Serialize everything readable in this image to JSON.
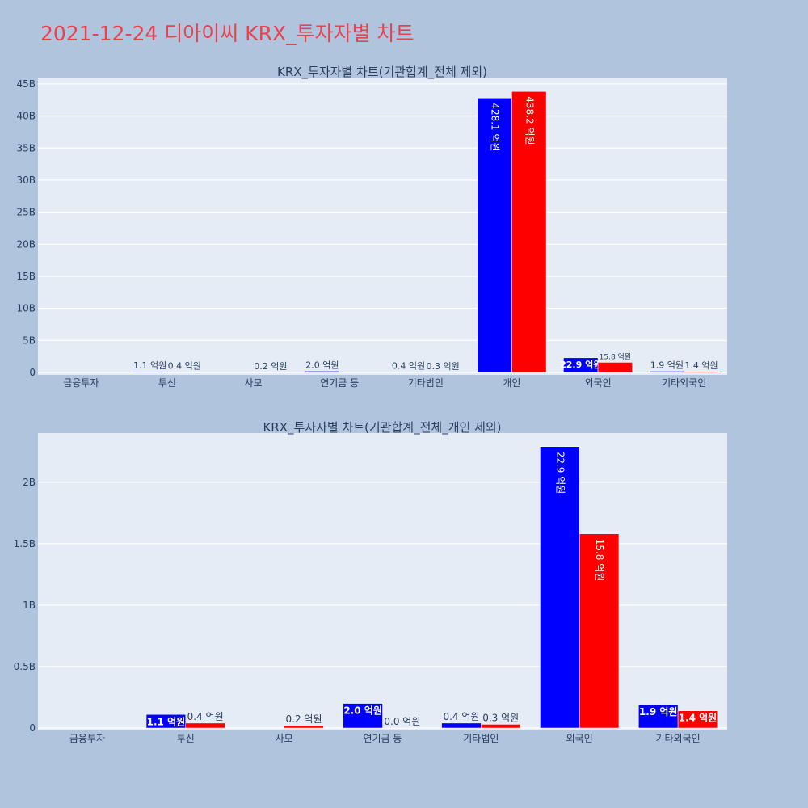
{
  "page_title": "2021-12-24 디아이씨 KRX_투자자별 차트",
  "colors": {
    "series_a": "#0000ff",
    "series_b": "#ff0000",
    "plot_bg": "#e5ecf6",
    "page_bg": "#b0c4de",
    "title": "#e8424f"
  },
  "chart_data": [
    {
      "type": "bar",
      "title": "KRX_투자자별 차트(기관합계_전체 제외)",
      "categories": [
        "금융투자",
        "투신",
        "사모",
        "연기금 등",
        "기타법인",
        "개인",
        "외국인",
        "기타외국인"
      ],
      "series": [
        {
          "values": [
            0,
            0.11,
            0,
            0.2,
            0.04,
            42.81,
            2.29,
            0.19
          ],
          "labels": [
            "",
            "1.1 억원",
            "",
            "2.0 억원",
            "0.4 억원",
            "428.1 억원",
            "22.9 억원",
            "1.9 억원"
          ]
        },
        {
          "values": [
            0,
            0.04,
            0.02,
            0,
            0.03,
            43.82,
            1.58,
            0.14
          ],
          "labels": [
            "",
            "0.4 억원",
            "0.2 억원",
            "",
            "0.3 억원",
            "438.2 억원",
            "15.8 억원",
            "1.4 억원"
          ]
        }
      ],
      "ylim": [
        0,
        46
      ],
      "yticks": [
        0,
        5,
        10,
        15,
        20,
        25,
        30,
        35,
        40,
        45
      ],
      "ytick_labels": [
        "0",
        "5B",
        "10B",
        "15B",
        "20B",
        "25B",
        "30B",
        "35B",
        "40B",
        "45B"
      ],
      "grid": true
    },
    {
      "type": "bar",
      "title": "KRX_투자자별 차트(기관합계_전체_개인 제외)",
      "categories": [
        "금융투자",
        "투신",
        "사모",
        "연기금 등",
        "기타법인",
        "외국인",
        "기타외국인"
      ],
      "series": [
        {
          "values": [
            0,
            0.11,
            0,
            0.2,
            0.04,
            2.29,
            0.19
          ],
          "labels": [
            "",
            "1.1 억원",
            "",
            "2.0 억원",
            "0.4 억원",
            "22.9 억원",
            "1.9 억원"
          ]
        },
        {
          "values": [
            0,
            0.04,
            0.02,
            0.001,
            0.03,
            1.58,
            0.14
          ],
          "labels": [
            "",
            "0.4 억원",
            "0.2 억원",
            "0.0 억원",
            "0.3 억원",
            "15.8 억원",
            "1.4 억원"
          ]
        }
      ],
      "ylim": [
        0,
        2.4
      ],
      "yticks": [
        0,
        0.5,
        1,
        1.5,
        2
      ],
      "ytick_labels": [
        "0",
        "0.5B",
        "1B",
        "1.5B",
        "2B"
      ],
      "grid": true
    }
  ]
}
